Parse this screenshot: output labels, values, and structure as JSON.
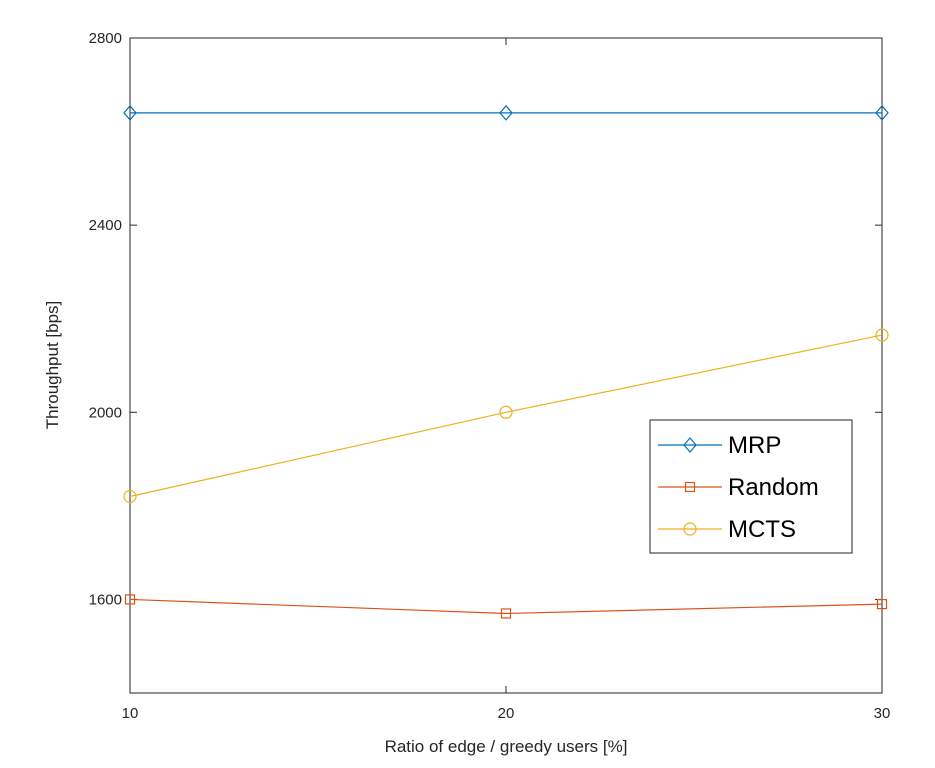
{
  "chart_data": {
    "type": "line",
    "title": "",
    "xlabel": "Ratio of edge / greedy users [%]",
    "ylabel": "Throughput [bps]",
    "x": [
      10,
      20,
      30
    ],
    "xlim": [
      10,
      30
    ],
    "ylim": [
      1400,
      2800
    ],
    "xticks": [
      "10",
      "20",
      "30"
    ],
    "yticks": [
      "1600",
      "2000",
      "2400",
      "2800"
    ],
    "grid": false,
    "legend_position": "right",
    "series": [
      {
        "name": "MRP",
        "values": [
          2640,
          2640,
          2640
        ],
        "color": "#0072BD",
        "marker": "diamond"
      },
      {
        "name": "Random",
        "values": [
          1600,
          1570,
          1590
        ],
        "color": "#D95319",
        "marker": "square"
      },
      {
        "name": "MCTS",
        "values": [
          1820,
          2000,
          2165
        ],
        "color": "#EDB120",
        "marker": "circle"
      }
    ]
  }
}
